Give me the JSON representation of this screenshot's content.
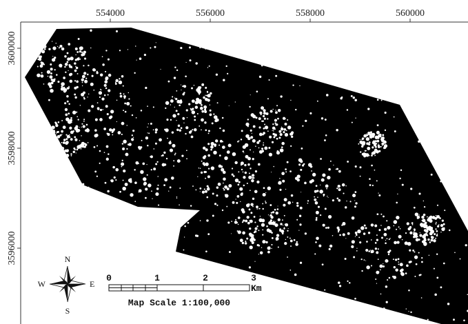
{
  "x_labels": [
    "554000",
    "556000",
    "558000",
    "560000"
  ],
  "y_labels": [
    "3600000",
    "3598000",
    "3596000"
  ],
  "compass": {
    "north": "N",
    "south": "S",
    "east": "E",
    "west": "W"
  },
  "scale_bar": {
    "ticks": [
      "0",
      "1",
      "2",
      "3"
    ],
    "unit": "Km",
    "caption": "Map Scale 1:100,000"
  }
}
